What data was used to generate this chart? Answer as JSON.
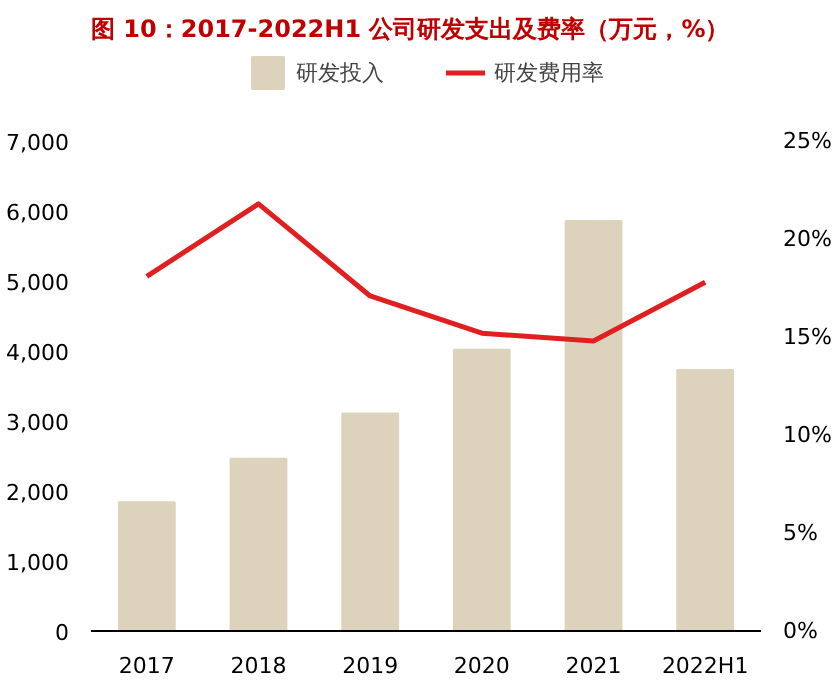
{
  "chart_data": {
    "type": "bar",
    "title": "图 10：2017-2022H1 公司研发支出及费率（万元，%）",
    "categories": [
      "2017",
      "2018",
      "2019",
      "2020",
      "2021",
      "2022H1"
    ],
    "series": [
      {
        "name": "研发投入",
        "color": "#ddd3bd",
        "values": [
          1840,
          2460,
          3110,
          4020,
          5860,
          3730
        ]
      },
      {
        "name": "研发费用率",
        "type": "line",
        "axis": "y2",
        "color": "#e02020",
        "values": [
          18.1,
          21.8,
          17.1,
          15.2,
          14.8,
          17.8
        ]
      }
    ],
    "ylim": [
      0,
      7000
    ],
    "yticks": [
      0,
      {
        "value": 1000,
        "label": "1,000"
      },
      {
        "value": 2000,
        "label": "2,000"
      },
      {
        "value": 3000,
        "label": "3,000"
      },
      {
        "value": 4000,
        "label": "4,000"
      },
      {
        "value": 5000,
        "label": "5,000"
      },
      {
        "value": 6000,
        "label": "6,000"
      },
      {
        "value": 7000,
        "label": "7,000"
      }
    ],
    "y2lim": [
      0,
      25
    ],
    "y2ticks": [
      {
        "value": 0,
        "label": "0%"
      },
      {
        "value": 5,
        "label": "5%"
      },
      {
        "value": 10,
        "label": "10%"
      },
      {
        "value": 15,
        "label": "15%"
      },
      {
        "value": 20,
        "label": "20%"
      },
      {
        "value": 25,
        "label": "25%"
      }
    ],
    "grid": false,
    "legend": "top",
    "line_style": "solid"
  }
}
